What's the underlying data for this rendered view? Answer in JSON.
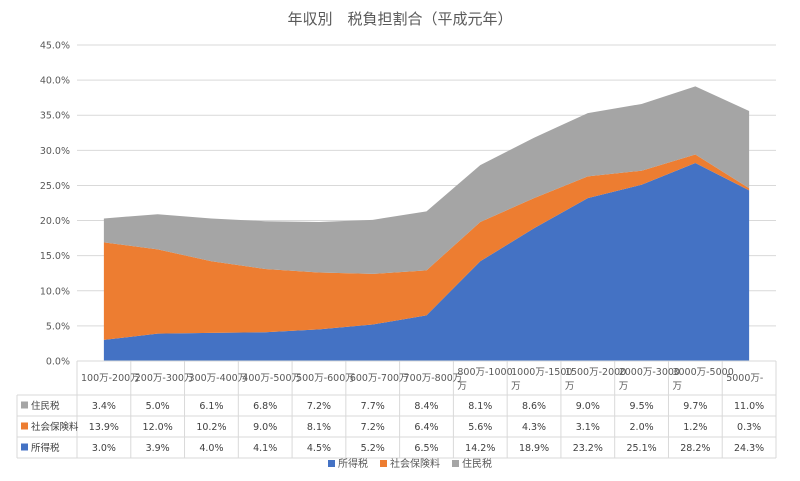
{
  "chart_data": {
    "type": "area",
    "stacked": true,
    "title": "年収別　税負担割合（平成元年）",
    "categories": [
      [
        "100万-200万"
      ],
      [
        "200万-300万"
      ],
      [
        "300万-400万"
      ],
      [
        "400万-500万"
      ],
      [
        "500万-600万"
      ],
      [
        "600万-700万"
      ],
      [
        "700万-800万"
      ],
      [
        "800万-1000",
        "万"
      ],
      [
        "1000万-1500",
        "万"
      ],
      [
        "1500万-2000",
        "万"
      ],
      [
        "2000万-3000",
        "万"
      ],
      [
        "3000万-5000",
        "万"
      ],
      [
        "5000万-"
      ]
    ],
    "ylim": [
      0,
      45
    ],
    "yticks": [
      "0.0%",
      "5.0%",
      "10.0%",
      "15.0%",
      "20.0%",
      "25.0%",
      "30.0%",
      "35.0%",
      "40.0%",
      "45.0%"
    ],
    "grid": true,
    "legend_position": "bottom",
    "data_table": true,
    "series": [
      {
        "name": "所得税",
        "color": "#4472C4",
        "values": [
          3.0,
          3.9,
          4.0,
          4.1,
          4.5,
          5.2,
          6.5,
          14.2,
          18.9,
          23.2,
          25.1,
          28.2,
          24.3
        ],
        "labels": [
          "3.0%",
          "3.9%",
          "4.0%",
          "4.1%",
          "4.5%",
          "5.2%",
          "6.5%",
          "14.2%",
          "18.9%",
          "23.2%",
          "25.1%",
          "28.2%",
          "24.3%"
        ]
      },
      {
        "name": "社会保険料",
        "color": "#ED7D31",
        "values": [
          13.9,
          12.0,
          10.2,
          9.0,
          8.1,
          7.2,
          6.4,
          5.6,
          4.3,
          3.1,
          2.0,
          1.2,
          0.3
        ],
        "labels": [
          "13.9%",
          "12.0%",
          "10.2%",
          "9.0%",
          "8.1%",
          "7.2%",
          "6.4%",
          "5.6%",
          "4.3%",
          "3.1%",
          "2.0%",
          "1.2%",
          "0.3%"
        ]
      },
      {
        "name": "住民税",
        "color": "#A5A5A5",
        "values": [
          3.4,
          5.0,
          6.1,
          6.8,
          7.2,
          7.7,
          8.4,
          8.1,
          8.6,
          9.0,
          9.5,
          9.7,
          11.0
        ],
        "labels": [
          "3.4%",
          "5.0%",
          "6.1%",
          "6.8%",
          "7.2%",
          "7.7%",
          "8.4%",
          "8.1%",
          "8.6%",
          "9.0%",
          "9.5%",
          "9.7%",
          "11.0%"
        ]
      }
    ]
  }
}
